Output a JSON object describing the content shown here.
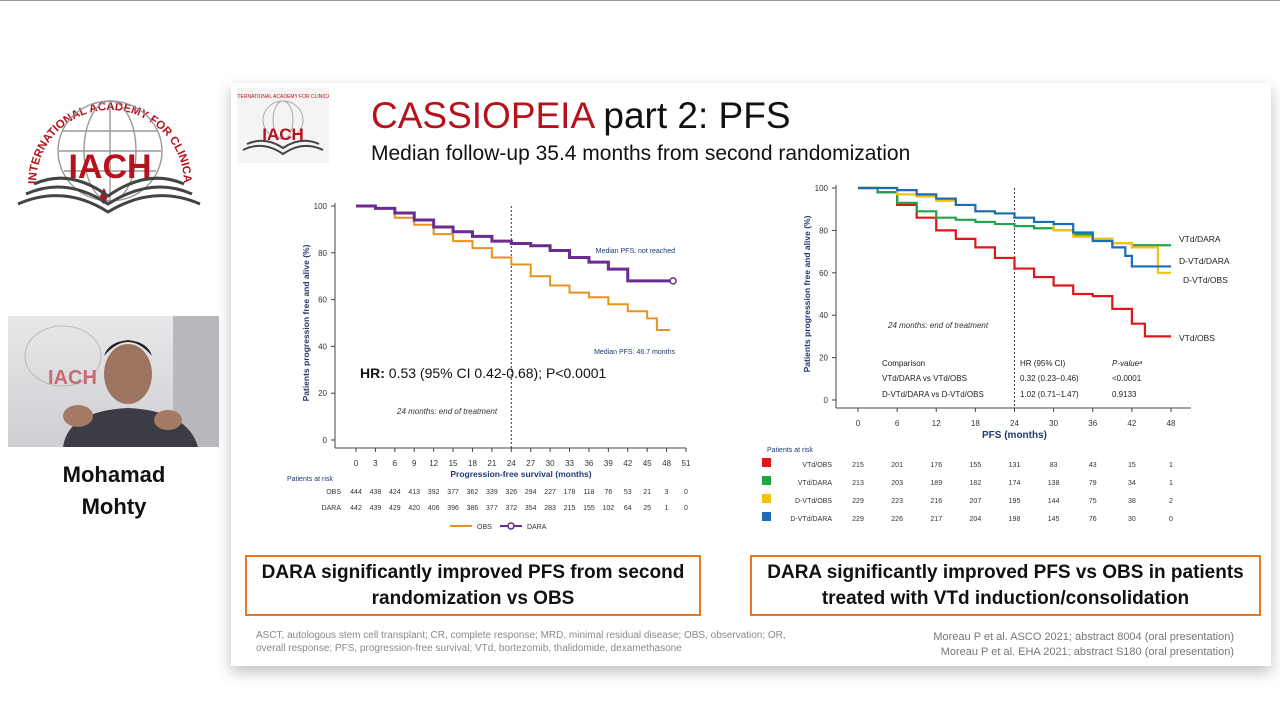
{
  "logo": {
    "text": "INTERNATIONAL ACADEMY FOR CLINICAL HEMATOLOGY",
    "abbr": "IACH"
  },
  "speaker": {
    "first": "Mohamad",
    "last": "Mohty"
  },
  "slide": {
    "title_red": "CASSIOPEIA",
    "title_rest": " part 2: PFS",
    "subtitle": "Median follow-up 35.4 months from second randomization",
    "box_left": "DARA significantly improved PFS from second randomization vs OBS",
    "box_right": "DARA significantly improved PFS vs OBS in patients treated with VTd induction/consolidation",
    "footnote": "ASCT, autologous stem cell transplant; CR, complete response; MRD, minimal residual disease; OBS, observation; OR, overall response; PFS, progression-free survival; VTd, bortezomib, thalidomide, dexamethasone",
    "ref1": "Moreau P et al. ASCO 2021; abstract 8004 (oral presentation)",
    "ref2": "Moreau P  et al. EHA 2021; abstract S180 (oral presentation)",
    "accent": "#e87722",
    "title_color": "#b5121b"
  },
  "chart_data": [
    {
      "type": "line",
      "ylabel": "Patients progression free and alive (%)",
      "xlabel": "Progression-free survival (months)",
      "xlim": [
        0,
        51
      ],
      "ylim": [
        0,
        100
      ],
      "xticks": [
        0,
        3,
        6,
        9,
        12,
        15,
        18,
        21,
        24,
        27,
        30,
        33,
        36,
        39,
        42,
        45,
        48,
        51
      ],
      "yticks": [
        0,
        20,
        40,
        60,
        80,
        100
      ],
      "annotation_eot": "24 months: end of treatment",
      "hr": "HR:",
      "hr_text": " 0.53 (95% CI 0.42-0.68); P<0.0001",
      "legend_position": "bottom",
      "series": [
        {
          "name": "OBS",
          "color": "#e8921e",
          "label": "Median PFS: 46.7 months",
          "x": [
            0,
            3,
            6,
            9,
            12,
            15,
            18,
            21,
            24,
            27,
            30,
            33,
            36,
            39,
            42,
            45,
            46.5,
            46.5,
            48.5
          ],
          "y": [
            100,
            99,
            95,
            92,
            88,
            85,
            82,
            78,
            75,
            70,
            66,
            63,
            61,
            58,
            55,
            52,
            52,
            47,
            47
          ]
        },
        {
          "name": "DARA",
          "color": "#6a2c91",
          "label": "Median PFS: not reached",
          "x": [
            0,
            3,
            6,
            9,
            12,
            15,
            18,
            21,
            24,
            27,
            30,
            33,
            36,
            39,
            42,
            49
          ],
          "y": [
            100,
            99,
            97,
            94,
            91,
            89,
            87,
            85,
            84,
            83,
            81,
            78,
            76,
            73,
            68,
            68
          ]
        }
      ],
      "risk_title": "Patients at risk",
      "risk": [
        {
          "name": "OBS",
          "values": [
            444,
            438,
            424,
            413,
            392,
            377,
            362,
            339,
            326,
            294,
            227,
            178,
            118,
            76,
            53,
            21,
            3,
            0
          ]
        },
        {
          "name": "DARA",
          "values": [
            442,
            439,
            429,
            420,
            406,
            396,
            386,
            377,
            372,
            354,
            283,
            215,
            155,
            102,
            64,
            25,
            1,
            0
          ]
        }
      ]
    },
    {
      "type": "line",
      "ylabel": "Patients progression free and alive (%)",
      "xlabel": "PFS (months)",
      "xlim": [
        0,
        48
      ],
      "ylim": [
        0,
        100
      ],
      "xticks": [
        0,
        6,
        12,
        18,
        24,
        30,
        36,
        42,
        48
      ],
      "yticks": [
        0,
        20,
        40,
        60,
        80,
        100
      ],
      "annotation_eot": "24 months: end of treatment",
      "table": {
        "headers": [
          "Comparison",
          "HR (95% CI)",
          "P-valueᵃ"
        ],
        "rows": [
          [
            "VTd/DARA vs VTd/OBS",
            "0.32 (0.23–0.46)",
            "<0.0001"
          ],
          [
            "D-VTd/DARA vs D-VTd/OBS",
            "1.02 (0.71–1.47)",
            "0.9133"
          ]
        ]
      },
      "series": [
        {
          "name": "VTd/OBS",
          "color": "#e0161b",
          "x": [
            0,
            3,
            6,
            9,
            12,
            15,
            18,
            21,
            24,
            27,
            30,
            33,
            36,
            39,
            42,
            44,
            48
          ],
          "y": [
            100,
            98,
            92,
            86,
            80,
            76,
            72,
            67,
            62,
            58,
            54,
            50,
            49,
            43,
            36,
            30,
            30
          ]
        },
        {
          "name": "VTd/DARA",
          "color": "#1fa64a",
          "x": [
            0,
            3,
            6,
            9,
            12,
            15,
            18,
            21,
            24,
            27,
            30,
            33,
            36,
            39,
            42,
            48
          ],
          "y": [
            100,
            98,
            93,
            89,
            86,
            85,
            84,
            83,
            82,
            81,
            80,
            78,
            76,
            74,
            73,
            73
          ]
        },
        {
          "name": "D-VTd/OBS",
          "color": "#f2c40f",
          "x": [
            0,
            3,
            6,
            9,
            12,
            15,
            18,
            21,
            24,
            27,
            30,
            33,
            36,
            39,
            42,
            46,
            46,
            48
          ],
          "y": [
            100,
            100,
            97,
            96,
            94,
            92,
            89,
            88,
            86,
            84,
            80,
            77,
            76,
            74,
            72,
            72,
            60,
            60
          ]
        },
        {
          "name": "D-VTd/DARA",
          "color": "#1b6db5",
          "x": [
            0,
            3,
            6,
            9,
            12,
            15,
            18,
            21,
            24,
            27,
            30,
            33,
            36,
            39,
            41,
            42,
            48
          ],
          "y": [
            100,
            100,
            99,
            97,
            95,
            92,
            89,
            88,
            86,
            84,
            83,
            79,
            75,
            72,
            68,
            63,
            63
          ]
        }
      ],
      "risk_title": "Patients at risk",
      "risk": [
        {
          "name": "VTd/OBS",
          "values": [
            215,
            201,
            176,
            155,
            131,
            83,
            43,
            15,
            1
          ]
        },
        {
          "name": "VTd/DARA",
          "values": [
            213,
            203,
            189,
            182,
            174,
            138,
            79,
            34,
            1
          ]
        },
        {
          "name": "D-VTd/OBS",
          "values": [
            229,
            223,
            216,
            207,
            195,
            144,
            75,
            38,
            2
          ]
        },
        {
          "name": "D-VTd/DARA",
          "values": [
            229,
            226,
            217,
            204,
            198,
            145,
            76,
            30,
            0
          ]
        }
      ]
    }
  ]
}
